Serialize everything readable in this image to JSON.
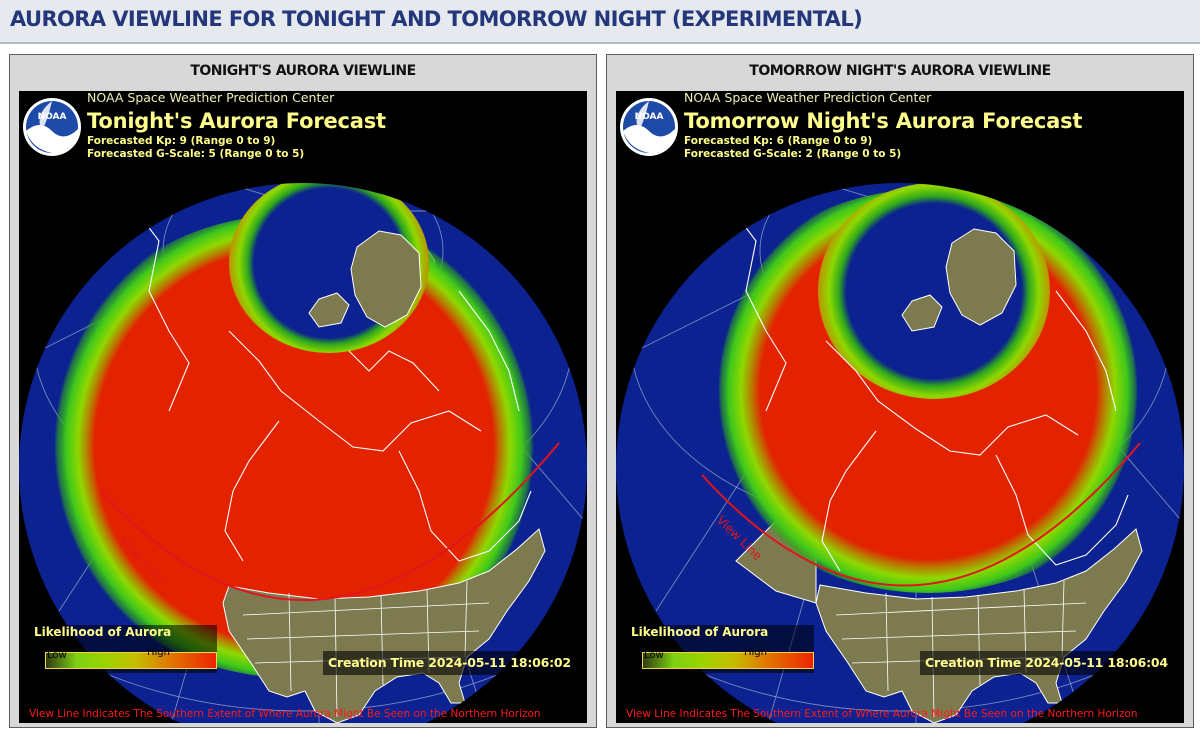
{
  "page": {
    "title": "AURORA VIEWLINE FOR TONIGHT AND TOMORROW NIGHT (EXPERIMENTAL)"
  },
  "panels": [
    {
      "panel_title": "TONIGHT'S AURORA VIEWLINE",
      "center_name": "NOAA Space Weather Prediction Center",
      "forecast_title": "Tonight's Aurora Forecast",
      "kp_line": "Forecasted Kp: 9 (Range 0 to 9)",
      "g_line": "Forecasted G-Scale: 5 (Range 0 to 5)",
      "kp": 9,
      "g_scale": 5,
      "legend_title": "Likelihood of Aurora",
      "legend_low": "Low",
      "legend_high": "High",
      "view_line_label": "View Line",
      "creation_time": "Creation Time 2024-05-11 18:06:02",
      "footer_note": "View Line Indicates The Southern Extent of Where Aurora Might Be Seen on the Northern Horizon"
    },
    {
      "panel_title": "TOMORROW NIGHT'S AURORA VIEWLINE",
      "center_name": "NOAA Space Weather Prediction Center",
      "forecast_title": "Tomorrow Night's Aurora Forecast",
      "kp_line": "Forecasted Kp: 6 (Range 0 to 9)",
      "g_line": "Forecasted G-Scale: 2 (Range 0 to 5)",
      "kp": 6,
      "g_scale": 2,
      "legend_title": "Likelihood of Aurora",
      "legend_low": "Low",
      "legend_high": "High",
      "view_line_label": "View Line",
      "creation_time": "Creation Time 2024-05-11 18:06:04",
      "footer_note": "View Line Indicates The Southern Extent of Where Aurora Might Be Seen on the Northern Horizon"
    }
  ],
  "colors": {
    "ocean": "#0b2290",
    "land": "#7e7a4f",
    "aurora_high": "#e32200",
    "aurora_mid": "#8fd800",
    "view_line": "#e3141e",
    "title_text": "#23377a",
    "forecast_text": "#fffd8c"
  }
}
